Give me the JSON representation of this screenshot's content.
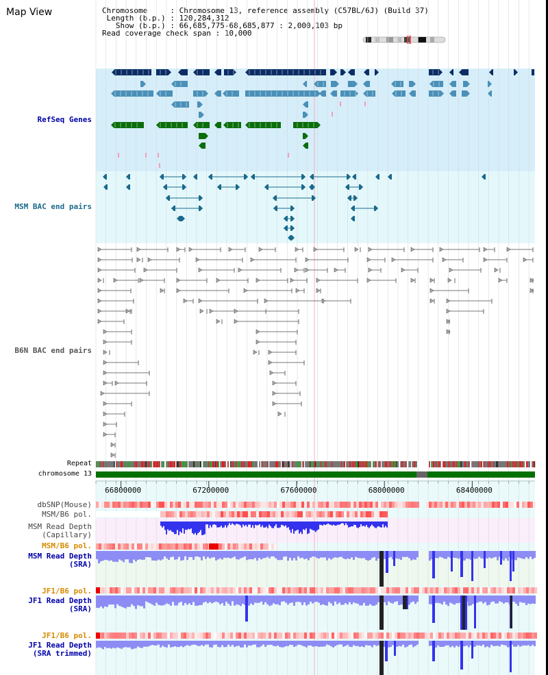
{
  "title": "Map View",
  "info": {
    "chromosome_key": "Chromosome     : ",
    "chromosome_val": "Chromosome 13, reference assembly (C57BL/6J) (Build 37)",
    "length_key": " Length (b.p.) : ",
    "length_val": "120,284,312",
    "show_key": "   Show (b.p.) : ",
    "show_val": "66,685,775-68,685,877 : 2,000,103 bp",
    "span_key": "Read coverage check span : ",
    "span_val": "10,000"
  },
  "tracks": {
    "refseq": "RefSeq Genes",
    "msm_bac": "MSM BAC end pairs",
    "b6n_bac": "B6N BAC end pairs",
    "repeat": "Repeat",
    "chromosome": "chromosome 13",
    "dbsnp": "dbSNP(Mouse)",
    "msm_b6_pol_1": "MSM/B6 pol.",
    "msm_depth_cap_1": "MSM Read Depth",
    "msm_depth_cap_2": "(Capillary)",
    "msm_b6_pol_2": "MSM/B6 pol.",
    "msm_depth_sra_1": "MSM Read Depth",
    "msm_depth_sra_2": "(SRA)",
    "jf1_b6_pol_1": "JF1/B6 pol.",
    "jf1_depth_sra_1": "JF1 Read Depth",
    "jf1_depth_sra_2": "(SRA)",
    "jf1_b6_pol_2": "JF1/B6 pol.",
    "jf1_depth_trim_1": "JF1 Read Depth",
    "jf1_depth_trim_2": "(SRA trimmed)"
  },
  "axis": {
    "ticks": [
      "66800000",
      "67200000",
      "67600000",
      "68000000",
      "68400000"
    ],
    "tick_values": [
      66800000,
      67200000,
      67600000,
      68000000,
      68400000
    ],
    "start": 66685775,
    "end": 68685877
  },
  "colors": {
    "refseq_bg": "#d6eefa",
    "msm_bac_bg": "#e4f8fb",
    "refseq_navy": "#0c2d64",
    "refseq_steel": "#4a90b8",
    "refseq_green": "#0a6e0a",
    "msm_bac_feature": "#1a6a8c",
    "b6n_feature": "#777777",
    "chromosome_green": "#007000",
    "label_blue": "#0000aa",
    "label_orange": "#d68a00",
    "depth_blue": "#3333ee",
    "depth_light": "#8c8cf4"
  }
}
